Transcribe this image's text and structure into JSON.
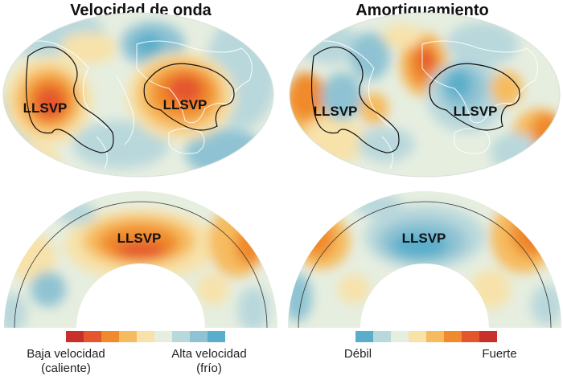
{
  "panels": {
    "left_title": "Velocidad de onda",
    "right_title": "Amortiguamiento",
    "region_label": "LLSVP"
  },
  "legend_left": {
    "low_line1": "Baja velocidad",
    "low_line2": "(caliente)",
    "high_line1": "Alta velocidad",
    "high_line2": "(frío)",
    "colors": [
      "#c9302c",
      "#e4572e",
      "#f08a2c",
      "#f6bb5e",
      "#f7e2aa",
      "#e6eee0",
      "#b9d8dc",
      "#8fc3d3",
      "#5aaecb"
    ]
  },
  "legend_right": {
    "weak": "Débil",
    "strong": "Fuerte",
    "colors": [
      "#5aaecb",
      "#b9d8dc",
      "#e6eee0",
      "#f7e2aa",
      "#f6bb5e",
      "#f08a2c",
      "#e4572e",
      "#c9302c"
    ]
  },
  "palette": {
    "neutral": "#e6eee0",
    "cold_light": "#b9d8dc",
    "cold_mid": "#8fc3d3",
    "cold_strong": "#5aaecb",
    "hot_light": "#f7e2aa",
    "hot_mid": "#f6bb5e",
    "hot_strong": "#f08a2c",
    "hot_very": "#e4572e",
    "hot_max": "#c9302c"
  }
}
